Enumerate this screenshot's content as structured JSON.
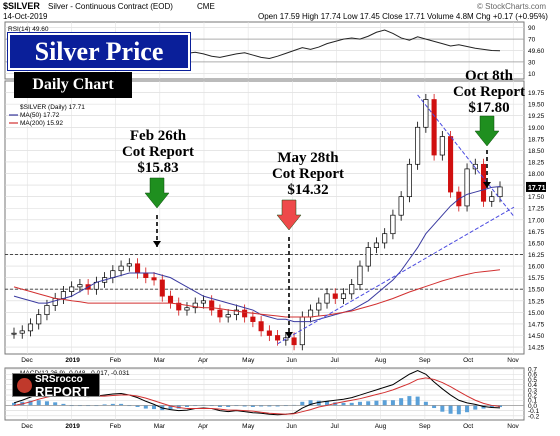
{
  "header": {
    "symbol": "$SILVER",
    "description": "Silver - Continuous Contract (EOD)",
    "exchange": "CME",
    "date": "14-Oct-2019",
    "ohlc_text": "Open 17.59  High 17.74  Low 17.45  Close 17.71  Volume 4.8M  Chg +0.17 (+0.95%)",
    "copyright": "© StockCharts.com"
  },
  "title": "Silver Price",
  "subtitle": "Daily Chart",
  "annotations": [
    {
      "text1": "Feb 26th",
      "text2": "Cot Report",
      "text3": "$15.83"
    },
    {
      "text1": "May 28th",
      "text2": "Cot Report",
      "text3": "$14.32"
    },
    {
      "text1": "Oct 8th",
      "text2": "Cot Report",
      "text3": "$17.80"
    }
  ],
  "logo": {
    "line1": "SRSrocco",
    "line2": "REPORT"
  },
  "colors": {
    "green_arrow": "#1f8f1f",
    "red_arrow": "#ee4a4a",
    "ma50": "#3a3aa0",
    "ma200": "#d23030",
    "trend": "#4b4be0",
    "price_up": "#000000",
    "price_down": "#d01010"
  },
  "chart_data": [
    {
      "type": "line",
      "panel": "RSI",
      "legend": "RSI(14) 49.60",
      "ylim": [
        0,
        100
      ],
      "y_ticks": [
        "90",
        "70",
        "49.60",
        "30",
        "10"
      ],
      "series": [
        {
          "name": "RSI(14)",
          "values": [
            60,
            58,
            55,
            52,
            58,
            62,
            65,
            60,
            57,
            55,
            58,
            60,
            63,
            66,
            68,
            64,
            58,
            52,
            47,
            44,
            42,
            45,
            47,
            44,
            40,
            38,
            41,
            44,
            46,
            42,
            38,
            36,
            40,
            45,
            50,
            55,
            52,
            56,
            62,
            66,
            70,
            72,
            70,
            75,
            82,
            86,
            80,
            72,
            68,
            74,
            70,
            66,
            62,
            58,
            60,
            57,
            54,
            52,
            50,
            49.6
          ]
        }
      ]
    },
    {
      "type": "line",
      "panel": "Price",
      "legend": [
        "$SILVER (Daily) 17.71",
        "MA(50) 17.72",
        "MA(200) 15.92"
      ],
      "ylim": [
        14.1,
        20.0
      ],
      "y_ticks": [
        "19.75",
        "19.50",
        "19.25",
        "19.00",
        "18.75",
        "18.50",
        "18.25",
        "18.00",
        "17.75",
        "17.50",
        "17.25",
        "17.00",
        "16.75",
        "16.50",
        "16.25",
        "16.00",
        "15.75",
        "15.50",
        "15.25",
        "15.00",
        "14.75",
        "14.50",
        "14.25"
      ],
      "last_value_label": "17.71",
      "x_ticks": [
        "Dec",
        "2019",
        "Feb",
        "Mar",
        "Apr",
        "May",
        "Jun",
        "Jul",
        "Aug",
        "Sep",
        "Oct",
        "Nov"
      ],
      "series": [
        {
          "name": "$SILVER (Daily)",
          "values": [
            14.55,
            14.6,
            14.75,
            14.95,
            15.15,
            15.3,
            15.45,
            15.55,
            15.6,
            15.5,
            15.65,
            15.75,
            15.9,
            16.0,
            16.05,
            15.85,
            15.75,
            15.7,
            15.35,
            15.2,
            15.05,
            15.1,
            15.2,
            15.25,
            15.05,
            14.9,
            14.95,
            15.05,
            14.9,
            14.8,
            14.6,
            14.5,
            14.4,
            14.45,
            14.3,
            14.9,
            15.05,
            15.2,
            15.4,
            15.3,
            15.4,
            15.6,
            16.0,
            16.4,
            16.5,
            16.7,
            17.1,
            17.5,
            18.2,
            19.0,
            19.6,
            18.4,
            18.8,
            17.6,
            17.3,
            18.1,
            18.2,
            17.4,
            17.5,
            17.71
          ]
        },
        {
          "name": "MA(50)",
          "values": [
            15.35,
            15.3,
            15.25,
            15.2,
            15.2,
            15.25,
            15.3,
            15.35,
            15.45,
            15.55,
            15.65,
            15.7,
            15.75,
            15.8,
            15.85,
            15.85,
            15.85,
            15.85,
            15.8,
            15.75,
            15.65,
            15.55,
            15.45,
            15.35,
            15.3,
            15.25,
            15.2,
            15.15,
            15.1,
            15.05,
            14.95,
            14.9,
            14.85,
            14.85,
            14.8,
            14.8,
            14.8,
            14.85,
            14.9,
            14.95,
            15.0,
            15.05,
            15.15,
            15.25,
            15.4,
            15.55,
            15.7,
            15.9,
            16.15,
            16.4,
            16.7,
            16.9,
            17.1,
            17.3,
            17.45,
            17.55,
            17.6,
            17.65,
            17.7,
            17.72
          ]
        },
        {
          "name": "MA(200)",
          "values": [
            15.55,
            15.5,
            15.45,
            15.4,
            15.35,
            15.3,
            15.28,
            15.25,
            15.23,
            15.2,
            15.2,
            15.2,
            15.2,
            15.2,
            15.2,
            15.2,
            15.2,
            15.2,
            15.2,
            15.2,
            15.18,
            15.15,
            15.12,
            15.1,
            15.1,
            15.08,
            15.05,
            15.03,
            15.0,
            14.98,
            14.96,
            14.94,
            14.92,
            14.9,
            14.9,
            14.9,
            14.9,
            14.92,
            14.94,
            14.97,
            15.0,
            15.03,
            15.08,
            15.13,
            15.18,
            15.24,
            15.3,
            15.37,
            15.44,
            15.5,
            15.56,
            15.62,
            15.68,
            15.73,
            15.78,
            15.82,
            15.86,
            15.88,
            15.9,
            15.92
          ]
        }
      ],
      "trendlines": [
        {
          "points": [
            [
              32,
              14.32
            ],
            [
              59,
              17.1
            ]
          ]
        },
        {
          "points": [
            [
              49,
              19.7
            ],
            [
              59,
              17.2
            ]
          ]
        }
      ]
    },
    {
      "type": "line",
      "panel": "MACD",
      "legend": "MACD(12,26,9) -0.048, -0.017, -0.031",
      "ylim": [
        -0.28,
        0.72
      ],
      "y_ticks": [
        "0.7",
        "0.6",
        "0.5",
        "0.4",
        "0.3",
        "0.2",
        "0.1",
        "0.0",
        "-0.1",
        "-0.2"
      ],
      "series": [
        {
          "name": "MACD",
          "values": [
            0.05,
            0.1,
            0.16,
            0.22,
            0.24,
            0.25,
            0.23,
            0.2,
            0.18,
            0.17,
            0.18,
            0.2,
            0.22,
            0.23,
            0.2,
            0.15,
            0.08,
            0.02,
            -0.05,
            -0.08,
            -0.1,
            -0.09,
            -0.06,
            -0.05,
            -0.06,
            -0.1,
            -0.12,
            -0.1,
            -0.12,
            -0.14,
            -0.15,
            -0.17,
            -0.18,
            -0.17,
            -0.15,
            -0.05,
            0.02,
            0.06,
            0.08,
            0.1,
            0.12,
            0.15,
            0.2,
            0.25,
            0.3,
            0.35,
            0.4,
            0.5,
            0.6,
            0.67,
            0.6,
            0.45,
            0.32,
            0.2,
            0.1,
            0.05,
            0.02,
            -0.02,
            -0.04,
            -0.048
          ]
        },
        {
          "name": "Signal",
          "values": [
            0.0,
            0.03,
            0.07,
            0.12,
            0.16,
            0.19,
            0.2,
            0.2,
            0.19,
            0.18,
            0.18,
            0.18,
            0.19,
            0.2,
            0.2,
            0.18,
            0.14,
            0.09,
            0.04,
            -0.01,
            -0.04,
            -0.06,
            -0.06,
            -0.06,
            -0.06,
            -0.07,
            -0.09,
            -0.09,
            -0.1,
            -0.11,
            -0.13,
            -0.15,
            -0.16,
            -0.17,
            -0.16,
            -0.12,
            -0.08,
            -0.03,
            0.0,
            0.04,
            0.07,
            0.1,
            0.13,
            0.17,
            0.21,
            0.25,
            0.3,
            0.36,
            0.42,
            0.5,
            0.53,
            0.5,
            0.44,
            0.36,
            0.27,
            0.18,
            0.1,
            0.04,
            0.0,
            -0.017
          ]
        }
      ]
    }
  ]
}
